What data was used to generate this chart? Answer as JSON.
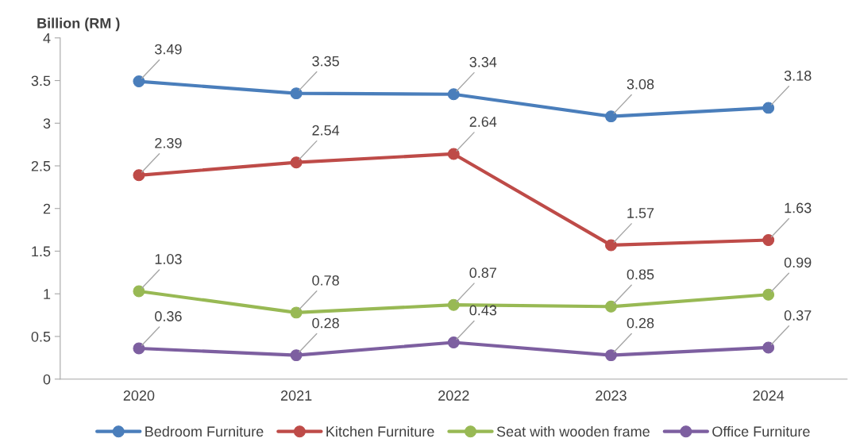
{
  "chart_data": {
    "type": "line",
    "ylabel": "Billion (RM )",
    "categories": [
      "2020",
      "2021",
      "2022",
      "2023",
      "2024"
    ],
    "series": [
      {
        "name": "Bedroom Furniture",
        "color": "#4a7ebb",
        "values": [
          3.49,
          3.35,
          3.34,
          3.08,
          3.18
        ]
      },
      {
        "name": "Kitchen Furniture",
        "color": "#be4b48",
        "values": [
          2.39,
          2.54,
          2.64,
          1.57,
          1.63
        ]
      },
      {
        "name": "Seat with wooden frame",
        "color": "#98b954",
        "values": [
          1.03,
          0.78,
          0.87,
          0.85,
          0.99
        ]
      },
      {
        "name": "Office Furniture",
        "color": "#7d5fa0",
        "values": [
          0.36,
          0.28,
          0.43,
          0.28,
          0.37
        ]
      }
    ],
    "ylim": [
      0,
      4
    ],
    "yticks": [
      0,
      0.5,
      1,
      1.5,
      2,
      2.5,
      3,
      3.5,
      4
    ],
    "data_labels": true,
    "marker": "circle",
    "line_style": "solid",
    "grid": false,
    "legend": "bottom"
  }
}
